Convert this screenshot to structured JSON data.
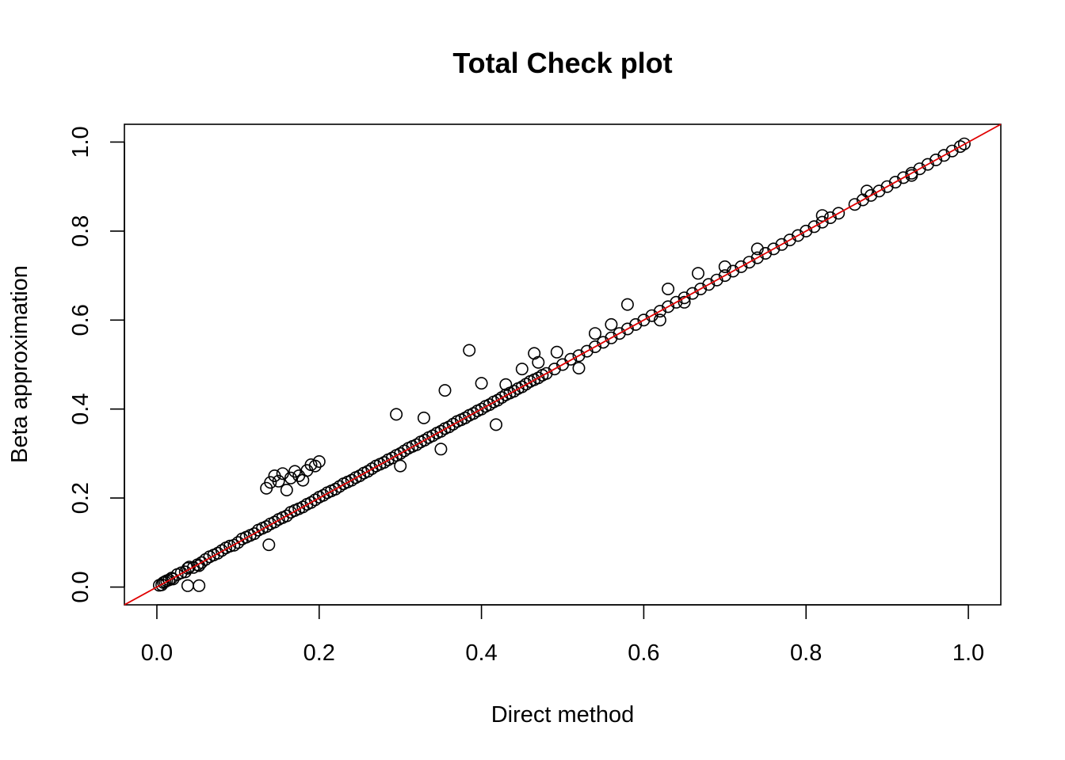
{
  "chart_data": {
    "type": "scatter",
    "title": "Total Check plot",
    "xlabel": "Direct method",
    "ylabel": "Beta approximation",
    "xlim": [
      -0.04,
      1.04
    ],
    "ylim": [
      -0.04,
      1.04
    ],
    "xticks": [
      "0.0",
      "0.2",
      "0.4",
      "0.6",
      "0.8",
      "1.0"
    ],
    "yticks": [
      "0.0",
      "0.2",
      "0.4",
      "0.6",
      "0.8",
      "1.0"
    ],
    "grid": false,
    "legend": "none",
    "reference_line": {
      "intercept": 0,
      "slope": 1,
      "color": "#e00000"
    },
    "marker": "open-circle",
    "series": [
      {
        "x": [
          0.003,
          0.006,
          0.008,
          0.01,
          0.012,
          0.015,
          0.018,
          0.02,
          0.025,
          0.03,
          0.035,
          0.038,
          0.04,
          0.045,
          0.05,
          0.052,
          0.055,
          0.06,
          0.065,
          0.07,
          0.075,
          0.08,
          0.085,
          0.09,
          0.095,
          0.1,
          0.105,
          0.11,
          0.115,
          0.12,
          0.125,
          0.13,
          0.135,
          0.14,
          0.145,
          0.15,
          0.155,
          0.16,
          0.165,
          0.17,
          0.175,
          0.18,
          0.185,
          0.19,
          0.195,
          0.2,
          0.205,
          0.21,
          0.215,
          0.22,
          0.225,
          0.23,
          0.235,
          0.24,
          0.245,
          0.25,
          0.255,
          0.26,
          0.265,
          0.27,
          0.275,
          0.28,
          0.285,
          0.29,
          0.295,
          0.3,
          0.305,
          0.31,
          0.315,
          0.32,
          0.325,
          0.33,
          0.335,
          0.34,
          0.345,
          0.35,
          0.355,
          0.36,
          0.365,
          0.37,
          0.375,
          0.38,
          0.385,
          0.39,
          0.395,
          0.4,
          0.405,
          0.41,
          0.415,
          0.42,
          0.425,
          0.43,
          0.435,
          0.44,
          0.445,
          0.45,
          0.455,
          0.46,
          0.465,
          0.47,
          0.475,
          0.48,
          0.49,
          0.5,
          0.51,
          0.52,
          0.53,
          0.54,
          0.55,
          0.56,
          0.57,
          0.58,
          0.59,
          0.6,
          0.61,
          0.62,
          0.63,
          0.64,
          0.65,
          0.66,
          0.67,
          0.68,
          0.69,
          0.7,
          0.71,
          0.72,
          0.73,
          0.74,
          0.75,
          0.76,
          0.77,
          0.78,
          0.79,
          0.8,
          0.81,
          0.82,
          0.83,
          0.84,
          0.86,
          0.87,
          0.88,
          0.89,
          0.9,
          0.91,
          0.92,
          0.93,
          0.94,
          0.95,
          0.96,
          0.97,
          0.98,
          0.99,
          0.995,
          0.135,
          0.14,
          0.145,
          0.15,
          0.155,
          0.16,
          0.165,
          0.17,
          0.175,
          0.18,
          0.185,
          0.19,
          0.195,
          0.2,
          0.138,
          0.038,
          0.052,
          0.295,
          0.329,
          0.355,
          0.385,
          0.4,
          0.418,
          0.465,
          0.493,
          0.58,
          0.63,
          0.667,
          0.52,
          0.54,
          0.56,
          0.3,
          0.35,
          0.43,
          0.45,
          0.47,
          0.62,
          0.65,
          0.7,
          0.74,
          0.82,
          0.875,
          0.93
        ],
        "y": [
          0.004,
          0.005,
          0.01,
          0.012,
          0.014,
          0.016,
          0.02,
          0.018,
          0.028,
          0.032,
          0.034,
          0.042,
          0.045,
          0.044,
          0.05,
          0.048,
          0.055,
          0.062,
          0.068,
          0.072,
          0.076,
          0.082,
          0.088,
          0.092,
          0.094,
          0.1,
          0.108,
          0.112,
          0.116,
          0.12,
          0.128,
          0.132,
          0.136,
          0.142,
          0.146,
          0.152,
          0.156,
          0.16,
          0.168,
          0.172,
          0.176,
          0.18,
          0.186,
          0.19,
          0.196,
          0.202,
          0.206,
          0.212,
          0.216,
          0.22,
          0.226,
          0.232,
          0.236,
          0.24,
          0.246,
          0.25,
          0.256,
          0.26,
          0.266,
          0.272,
          0.276,
          0.28,
          0.286,
          0.29,
          0.296,
          0.3,
          0.306,
          0.312,
          0.316,
          0.32,
          0.326,
          0.33,
          0.336,
          0.34,
          0.346,
          0.35,
          0.356,
          0.36,
          0.366,
          0.372,
          0.376,
          0.38,
          0.386,
          0.39,
          0.396,
          0.4,
          0.406,
          0.41,
          0.416,
          0.42,
          0.426,
          0.432,
          0.436,
          0.44,
          0.446,
          0.45,
          0.456,
          0.462,
          0.466,
          0.47,
          0.476,
          0.48,
          0.49,
          0.5,
          0.512,
          0.52,
          0.53,
          0.54,
          0.55,
          0.56,
          0.57,
          0.58,
          0.59,
          0.6,
          0.61,
          0.62,
          0.63,
          0.64,
          0.65,
          0.66,
          0.67,
          0.68,
          0.69,
          0.7,
          0.71,
          0.72,
          0.73,
          0.74,
          0.75,
          0.76,
          0.77,
          0.78,
          0.79,
          0.8,
          0.81,
          0.82,
          0.83,
          0.84,
          0.86,
          0.87,
          0.88,
          0.89,
          0.9,
          0.91,
          0.92,
          0.93,
          0.94,
          0.95,
          0.96,
          0.97,
          0.98,
          0.99,
          0.996,
          0.222,
          0.235,
          0.25,
          0.238,
          0.255,
          0.218,
          0.245,
          0.26,
          0.25,
          0.24,
          0.262,
          0.275,
          0.272,
          0.282,
          0.095,
          0.003,
          0.003,
          0.388,
          0.38,
          0.442,
          0.532,
          0.458,
          0.365,
          0.525,
          0.528,
          0.635,
          0.67,
          0.705,
          0.492,
          0.57,
          0.59,
          0.272,
          0.31,
          0.455,
          0.49,
          0.505,
          0.6,
          0.64,
          0.72,
          0.76,
          0.835,
          0.89,
          0.925
        ]
      }
    ]
  }
}
